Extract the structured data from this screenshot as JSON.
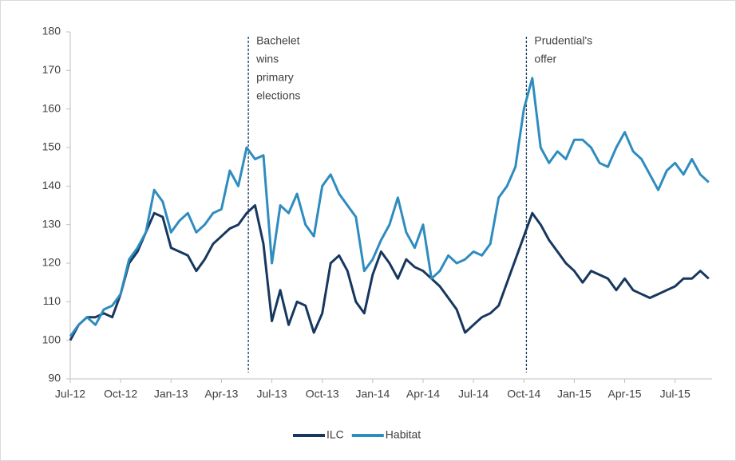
{
  "chart_data": {
    "type": "line",
    "x": [
      0,
      0.5,
      1,
      1.5,
      2,
      2.5,
      3,
      3.5,
      4,
      4.5,
      5,
      5.5,
      6,
      6.5,
      7,
      7.5,
      8,
      8.5,
      9,
      9.5,
      10,
      10.5,
      11,
      11.5,
      12,
      12.5,
      13,
      13.5,
      14,
      14.5,
      15,
      15.5,
      16,
      16.5,
      17,
      17.5,
      18,
      18.5,
      19,
      19.5,
      20,
      20.5,
      21,
      21.5,
      22,
      22.5,
      23,
      23.5,
      24,
      24.5,
      25,
      25.5,
      26,
      26.5,
      27,
      27.5,
      28,
      28.5,
      29,
      29.5,
      30,
      30.5,
      31,
      31.5,
      32,
      32.5,
      33,
      33.5,
      34,
      34.5,
      35,
      35.5,
      36,
      36.5,
      37,
      37.5,
      38
    ],
    "series": [
      {
        "name": "ILC",
        "color": "#17375e",
        "values": [
          100,
          104,
          106,
          106,
          107,
          106,
          112,
          120,
          123,
          128,
          133,
          132,
          124,
          123,
          122,
          118,
          121,
          125,
          127,
          129,
          130,
          133,
          135,
          125,
          105,
          113,
          104,
          110,
          109,
          102,
          107,
          120,
          122,
          118,
          110,
          107,
          117,
          123,
          120,
          116,
          121,
          119,
          118,
          116,
          114,
          111,
          108,
          102,
          104,
          106,
          107,
          109,
          115,
          121,
          127,
          133,
          130,
          126,
          123,
          120,
          118,
          115,
          118,
          117,
          116,
          113,
          116,
          113,
          112,
          111,
          112,
          113,
          114,
          116,
          116,
          118,
          116
        ]
      },
      {
        "name": "Habitat",
        "color": "#2e8cbf",
        "values": [
          101,
          104,
          106,
          104,
          108,
          109,
          112,
          121,
          124,
          128,
          139,
          136,
          128,
          131,
          133,
          128,
          130,
          133,
          134,
          144,
          140,
          150,
          147,
          148,
          120,
          135,
          133,
          138,
          130,
          127,
          140,
          143,
          138,
          135,
          132,
          118,
          121,
          126,
          130,
          137,
          128,
          124,
          130,
          116,
          118,
          122,
          120,
          121,
          123,
          122,
          125,
          137,
          140,
          145,
          160,
          168,
          150,
          146,
          149,
          147,
          152,
          152,
          150,
          146,
          145,
          150,
          154,
          149,
          147,
          143,
          139,
          144,
          146,
          143,
          147,
          143,
          141
        ]
      }
    ],
    "xlim": [
      0,
      38.2
    ],
    "xticks": [
      {
        "value": 0,
        "label": "Jul-12"
      },
      {
        "value": 3,
        "label": "Oct-12"
      },
      {
        "value": 6,
        "label": "Jan-13"
      },
      {
        "value": 9,
        "label": "Apr-13"
      },
      {
        "value": 12,
        "label": "Jul-13"
      },
      {
        "value": 15,
        "label": "Oct-13"
      },
      {
        "value": 18,
        "label": "Jan-14"
      },
      {
        "value": 21,
        "label": "Apr-14"
      },
      {
        "value": 24,
        "label": "Jul-14"
      },
      {
        "value": 27,
        "label": "Oct-14"
      },
      {
        "value": 30,
        "label": "Jan-15"
      },
      {
        "value": 33,
        "label": "Apr-15"
      },
      {
        "value": 36,
        "label": "Jul-15"
      }
    ],
    "ylim": [
      90,
      180
    ],
    "yticks": [
      90,
      100,
      110,
      120,
      130,
      140,
      150,
      160,
      170,
      180
    ],
    "grid": false,
    "legend": "bottom",
    "annotations": [
      {
        "x": 10.6,
        "lines": [
          "Bachelet",
          "wins",
          "primary",
          "elections"
        ]
      },
      {
        "x": 27.15,
        "lines": [
          "Prudential's",
          "offer"
        ]
      }
    ]
  }
}
